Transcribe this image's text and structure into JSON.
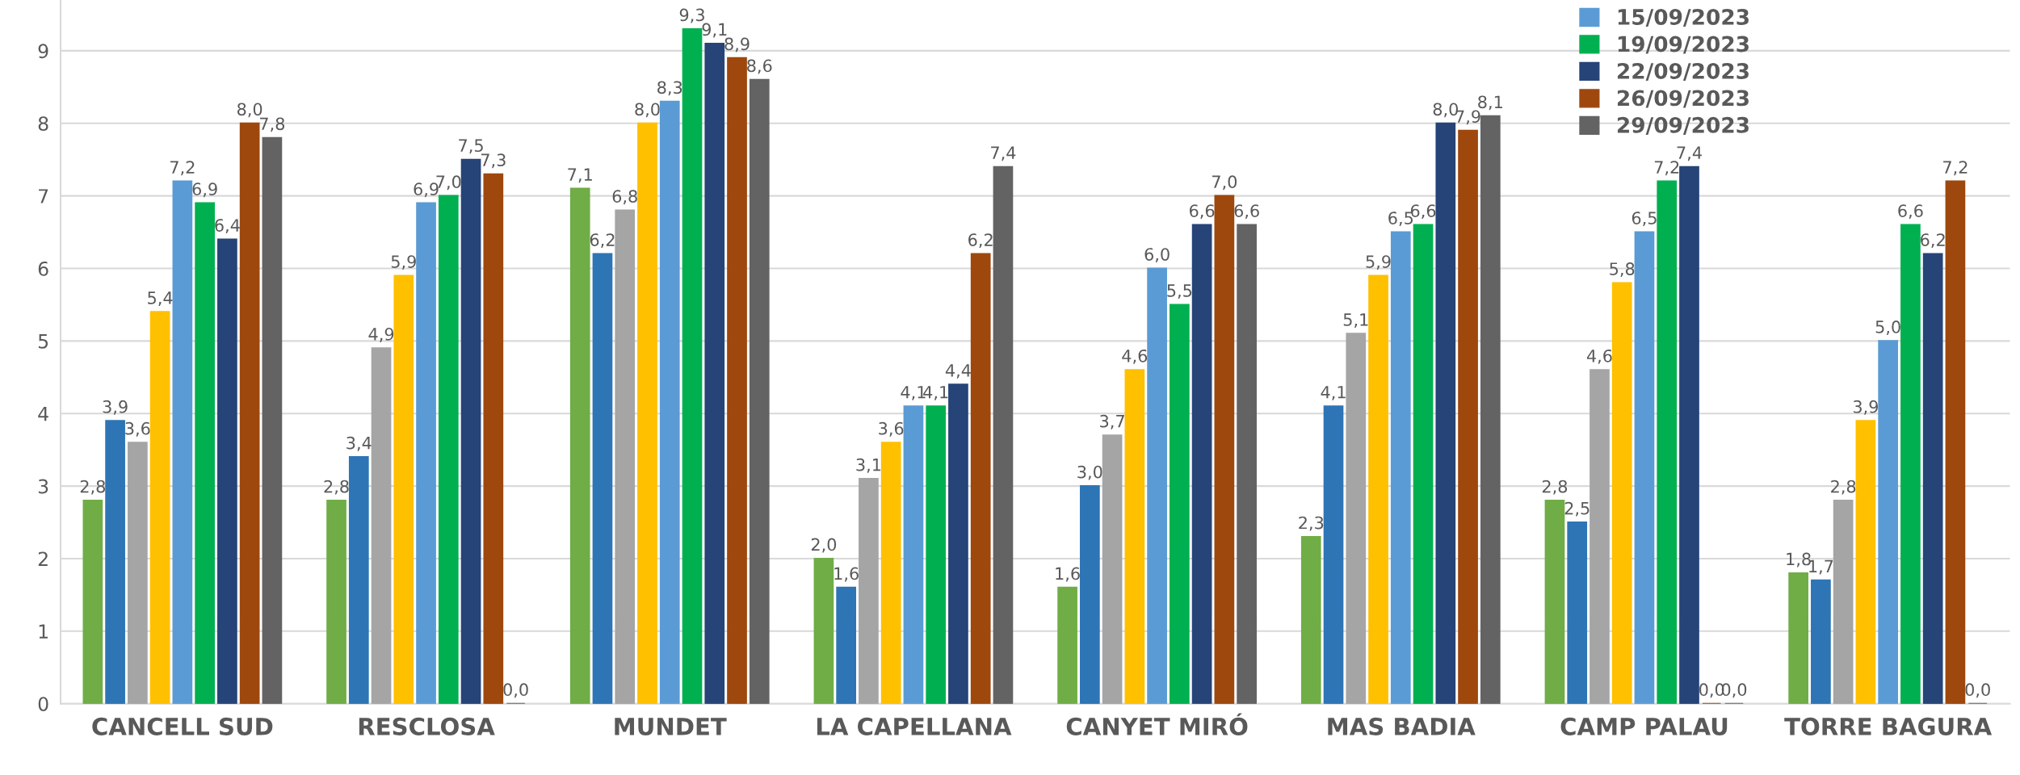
{
  "chart_data": {
    "type": "bar",
    "categories": [
      "CANCELL SUD",
      "RESCLOSA",
      "MUNDET",
      "LA CAPELLANA",
      "CANYET MIRÓ",
      "MAS BADIA",
      "CAMP PALAU",
      "TORRE BAGURA"
    ],
    "series": [
      {
        "color": "#70ad47",
        "values": [
          2.8,
          2.8,
          7.1,
          2.0,
          1.6,
          2.3,
          2.8,
          1.8
        ],
        "value_labels": [
          "2,8",
          "2,8",
          "7,1",
          "2,0",
          "1,6",
          "2,3",
          "2,8",
          "1,8"
        ]
      },
      {
        "color": "#2e75b6",
        "values": [
          3.9,
          3.4,
          6.2,
          1.6,
          3.0,
          4.1,
          2.5,
          1.7
        ],
        "value_labels": [
          "3,9",
          "3,4",
          "6,2",
          "1,6",
          "3,0",
          "4,1",
          "2,5",
          "1,7"
        ]
      },
      {
        "color": "#a5a5a5",
        "values": [
          3.6,
          4.9,
          6.8,
          3.1,
          3.7,
          5.1,
          4.6,
          2.8
        ],
        "value_labels": [
          "3,6",
          "4,9",
          "6,8",
          "3,1",
          "3,7",
          "5,1",
          "4,6",
          "2,8"
        ]
      },
      {
        "color": "#ffc000",
        "values": [
          5.4,
          5.9,
          8.0,
          3.6,
          4.6,
          5.9,
          5.8,
          3.9
        ],
        "value_labels": [
          "5,4",
          "5,9",
          "8,0",
          "3,6",
          "4,6",
          "5,9",
          "5,8",
          "3,9"
        ]
      },
      {
        "name": "15/09/2023",
        "color": "#5b9bd5",
        "values": [
          7.2,
          6.9,
          8.3,
          4.1,
          6.0,
          6.5,
          6.5,
          5.0
        ],
        "value_labels": [
          "7,2",
          "6,9",
          "8,3",
          "4,1",
          "6,0",
          "6,5",
          "6,5",
          "5,0"
        ]
      },
      {
        "name": "19/09/2023",
        "color": "#00b050",
        "values": [
          6.9,
          7.0,
          9.3,
          4.1,
          5.5,
          6.6,
          7.2,
          6.6
        ],
        "value_labels": [
          "6,9",
          "7,0",
          "9,3",
          "4,1",
          "5,5",
          "6,6",
          "7,2",
          "6,6"
        ]
      },
      {
        "name": "22/09/2023",
        "color": "#264478",
        "values": [
          6.4,
          7.5,
          9.1,
          4.4,
          6.6,
          8.0,
          7.4,
          6.2
        ],
        "value_labels": [
          "6,4",
          "7,5",
          "9,1",
          "4,4",
          "6,6",
          "8,0",
          "7,4",
          "6,2"
        ]
      },
      {
        "name": "26/09/2023",
        "color": "#9e480e",
        "values": [
          8.0,
          7.3,
          8.9,
          6.2,
          7.0,
          7.9,
          0.0,
          7.2
        ],
        "value_labels": [
          "8,0",
          "7,3",
          "8,9",
          "6,2",
          "7,0",
          "7,9",
          "0,0",
          "7,2"
        ]
      },
      {
        "name": "29/09/2023",
        "color": "#636363",
        "values": [
          7.8,
          0.0,
          8.6,
          7.4,
          6.6,
          8.1,
          0.0,
          0.0
        ],
        "value_labels": [
          "7,8",
          "0,0",
          "8,6",
          "7,4",
          "6,6",
          "8,1",
          "0,0",
          "0,0"
        ]
      }
    ],
    "ylim": [
      0,
      9.7
    ],
    "yticks": [
      0,
      1,
      2,
      3,
      4,
      5,
      6,
      7,
      8,
      9
    ],
    "grid": "y",
    "legend": "top right"
  }
}
